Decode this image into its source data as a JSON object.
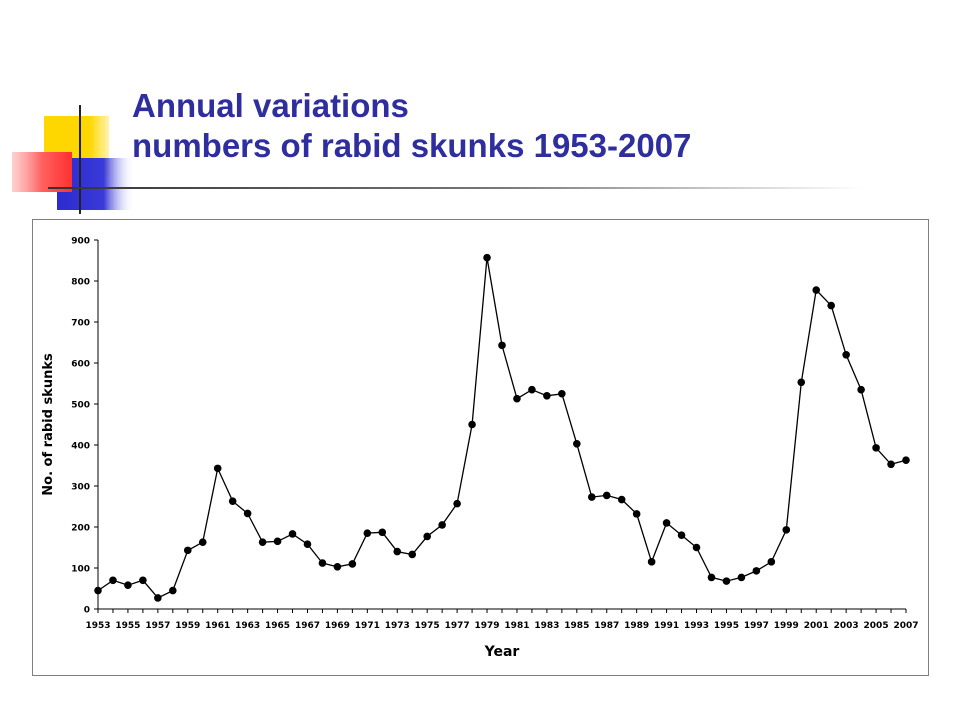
{
  "slide": {
    "title_line1": "Annual variations",
    "title_line2": "numbers of rabid skunks 1953-2007",
    "title_color": "#2E2E9E"
  },
  "chart_data": {
    "type": "line",
    "title": "",
    "xlabel": "Year",
    "ylabel": "No. of rabid skunks",
    "ylim": [
      0,
      900
    ],
    "yticks": [
      0,
      100,
      200,
      300,
      400,
      500,
      600,
      700,
      800,
      900
    ],
    "xlim": [
      1953,
      2007
    ],
    "xtick_labels": [
      "1953",
      "1955",
      "1957",
      "1959",
      "1961",
      "1963",
      "1965",
      "1967",
      "1969",
      "1971",
      "1973",
      "1975",
      "1977",
      "1979",
      "1981",
      "1983",
      "1985",
      "1987",
      "1989",
      "1991",
      "1993",
      "1995",
      "1997",
      "1999",
      "2001",
      "2003",
      "2005",
      "2007"
    ],
    "grid": false,
    "legend": "none",
    "marker": "circle",
    "line_color": "#000000",
    "series": [
      {
        "x": [
          1953,
          1954,
          1955,
          1956,
          1957,
          1958,
          1959,
          1960,
          1961,
          1962,
          1963,
          1964,
          1965,
          1966,
          1967,
          1968,
          1969,
          1970,
          1971,
          1972,
          1973,
          1974,
          1975,
          1976,
          1977,
          1978,
          1979,
          1980,
          1981,
          1982,
          1983,
          1984,
          1985,
          1986,
          1987,
          1988,
          1989,
          1990,
          1991,
          1992,
          1993,
          1994,
          1995,
          1996,
          1997,
          1998,
          1999,
          2000,
          2001,
          2002,
          2003,
          2004,
          2005,
          2006,
          2007
        ],
        "values": [
          45,
          70,
          58,
          70,
          27,
          45,
          143,
          163,
          343,
          263,
          233,
          163,
          165,
          183,
          158,
          112,
          103,
          110,
          185,
          187,
          140,
          133,
          177,
          205,
          257,
          450,
          857,
          643,
          513,
          535,
          520,
          525,
          403,
          273,
          277,
          267,
          232,
          115,
          210,
          180,
          150,
          77,
          68,
          77,
          93,
          115,
          193,
          553,
          778,
          740,
          620,
          535,
          393,
          353,
          363
        ]
      }
    ]
  }
}
